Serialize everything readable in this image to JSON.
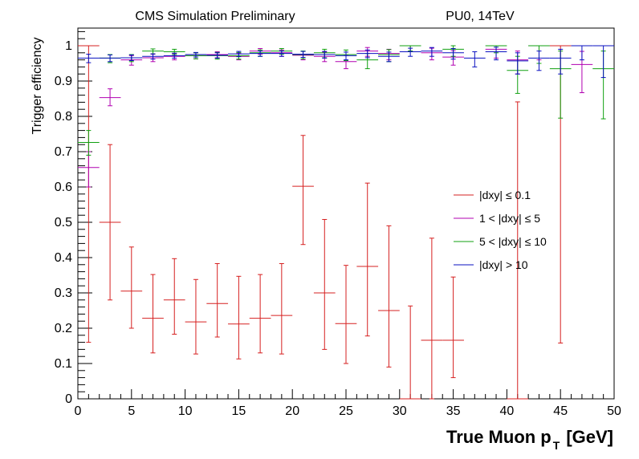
{
  "chart_data": {
    "type": "scatter",
    "title_left": "CMS Simulation Preliminary",
    "title_right": "PU0, 14TeV",
    "xlabel_main": "True Muon p",
    "xlabel_sub": "T",
    "xlabel_unit": "[GeV]",
    "ylabel": "Trigger efficiency",
    "xlim": [
      0,
      50
    ],
    "ylim": [
      0,
      1.05
    ],
    "xticks": [
      "0",
      "5",
      "10",
      "15",
      "20",
      "25",
      "30",
      "35",
      "40",
      "45",
      "50"
    ],
    "yticks": [
      "0",
      "0.1",
      "0.2",
      "0.3",
      "0.4",
      "0.5",
      "0.6",
      "0.7",
      "0.8",
      "0.9",
      "1"
    ],
    "legend_position": "center-right",
    "series": [
      {
        "name": "|dxy| ≤ 0.1",
        "color": "#d62020",
        "points": [
          {
            "x": 1,
            "y": 1.0,
            "lo": 0.16,
            "hi": 1.0
          },
          {
            "x": 3,
            "y": 0.5,
            "lo": 0.28,
            "hi": 0.72
          },
          {
            "x": 5,
            "y": 0.305,
            "lo": 0.2,
            "hi": 0.43
          },
          {
            "x": 7,
            "y": 0.228,
            "lo": 0.13,
            "hi": 0.352
          },
          {
            "x": 9,
            "y": 0.28,
            "lo": 0.183,
            "hi": 0.397
          },
          {
            "x": 11,
            "y": 0.218,
            "lo": 0.127,
            "hi": 0.338
          },
          {
            "x": 13,
            "y": 0.27,
            "lo": 0.175,
            "hi": 0.383
          },
          {
            "x": 15,
            "y": 0.212,
            "lo": 0.113,
            "hi": 0.347
          },
          {
            "x": 17,
            "y": 0.228,
            "lo": 0.13,
            "hi": 0.352
          },
          {
            "x": 19,
            "y": 0.236,
            "lo": 0.127,
            "hi": 0.383
          },
          {
            "x": 21,
            "y": 0.602,
            "lo": 0.437,
            "hi": 0.746
          },
          {
            "x": 23,
            "y": 0.3,
            "lo": 0.14,
            "hi": 0.508
          },
          {
            "x": 25,
            "y": 0.213,
            "lo": 0.1,
            "hi": 0.378
          },
          {
            "x": 27,
            "y": 0.375,
            "lo": 0.178,
            "hi": 0.611
          },
          {
            "x": 29,
            "y": 0.25,
            "lo": 0.09,
            "hi": 0.49
          },
          {
            "x": 31,
            "y": 0.0,
            "lo": 0.0,
            "hi": 0.263
          },
          {
            "x": 33,
            "y": 0.166,
            "lo": 0.0,
            "hi": 0.455
          },
          {
            "x": 35,
            "y": 0.166,
            "lo": 0.06,
            "hi": 0.345
          },
          {
            "x": 41,
            "y": 0.0,
            "lo": 0.0,
            "hi": 0.841
          },
          {
            "x": 45,
            "y": 1.0,
            "lo": 0.158,
            "hi": 1.0
          }
        ]
      },
      {
        "name": "1 < |dxy| ≤ 5",
        "color": "#b000b0",
        "points": [
          {
            "x": 1,
            "y": 0.655,
            "lo": 0.6,
            "hi": 0.7
          },
          {
            "x": 3,
            "y": 0.853,
            "lo": 0.83,
            "hi": 0.878
          },
          {
            "x": 5,
            "y": 0.96,
            "lo": 0.945,
            "hi": 0.972
          },
          {
            "x": 7,
            "y": 0.966,
            "lo": 0.955,
            "hi": 0.976
          },
          {
            "x": 9,
            "y": 0.97,
            "lo": 0.96,
            "hi": 0.978
          },
          {
            "x": 11,
            "y": 0.972,
            "lo": 0.963,
            "hi": 0.98
          },
          {
            "x": 13,
            "y": 0.975,
            "lo": 0.966,
            "hi": 0.983
          },
          {
            "x": 15,
            "y": 0.97,
            "lo": 0.96,
            "hi": 0.979
          },
          {
            "x": 17,
            "y": 0.985,
            "lo": 0.976,
            "hi": 0.992
          },
          {
            "x": 19,
            "y": 0.98,
            "lo": 0.97,
            "hi": 0.988
          },
          {
            "x": 21,
            "y": 0.973,
            "lo": 0.96,
            "hi": 0.984
          },
          {
            "x": 23,
            "y": 0.97,
            "lo": 0.955,
            "hi": 0.982
          },
          {
            "x": 25,
            "y": 0.955,
            "lo": 0.935,
            "hi": 0.972
          },
          {
            "x": 27,
            "y": 0.985,
            "lo": 0.97,
            "hi": 0.995
          },
          {
            "x": 29,
            "y": 0.978,
            "lo": 0.96,
            "hi": 0.99
          },
          {
            "x": 31,
            "y": 1.0,
            "lo": 0.985,
            "hi": 1.0
          },
          {
            "x": 33,
            "y": 0.98,
            "lo": 0.96,
            "hi": 0.993
          },
          {
            "x": 35,
            "y": 0.968,
            "lo": 0.945,
            "hi": 0.986
          },
          {
            "x": 39,
            "y": 0.99,
            "lo": 0.965,
            "hi": 1.0
          },
          {
            "x": 41,
            "y": 0.96,
            "lo": 0.92,
            "hi": 0.985
          },
          {
            "x": 43,
            "y": 1.0,
            "lo": 0.96,
            "hi": 1.0
          },
          {
            "x": 47,
            "y": 0.947,
            "lo": 0.867,
            "hi": 0.984
          }
        ]
      },
      {
        "name": "5 < |dxy| ≤ 10",
        "color": "#10a010",
        "points": [
          {
            "x": 1,
            "y": 0.726,
            "lo": 0.69,
            "hi": 0.76
          },
          {
            "x": 3,
            "y": 0.965,
            "lo": 0.952,
            "hi": 0.975
          },
          {
            "x": 5,
            "y": 0.966,
            "lo": 0.955,
            "hi": 0.975
          },
          {
            "x": 7,
            "y": 0.985,
            "lo": 0.977,
            "hi": 0.991
          },
          {
            "x": 9,
            "y": 0.983,
            "lo": 0.975,
            "hi": 0.99
          },
          {
            "x": 11,
            "y": 0.972,
            "lo": 0.963,
            "hi": 0.98
          },
          {
            "x": 13,
            "y": 0.972,
            "lo": 0.962,
            "hi": 0.981
          },
          {
            "x": 15,
            "y": 0.972,
            "lo": 0.962,
            "hi": 0.981
          },
          {
            "x": 17,
            "y": 0.98,
            "lo": 0.97,
            "hi": 0.988
          },
          {
            "x": 19,
            "y": 0.985,
            "lo": 0.976,
            "hi": 0.992
          },
          {
            "x": 21,
            "y": 0.975,
            "lo": 0.963,
            "hi": 0.985
          },
          {
            "x": 23,
            "y": 0.98,
            "lo": 0.966,
            "hi": 0.99
          },
          {
            "x": 25,
            "y": 0.975,
            "lo": 0.958,
            "hi": 0.988
          },
          {
            "x": 27,
            "y": 0.96,
            "lo": 0.935,
            "hi": 0.978
          },
          {
            "x": 29,
            "y": 0.975,
            "lo": 0.955,
            "hi": 0.989
          },
          {
            "x": 31,
            "y": 1.0,
            "lo": 0.985,
            "hi": 1.0
          },
          {
            "x": 35,
            "y": 0.99,
            "lo": 0.97,
            "hi": 1.0
          },
          {
            "x": 39,
            "y": 1.0,
            "lo": 0.98,
            "hi": 1.0
          },
          {
            "x": 41,
            "y": 0.93,
            "lo": 0.865,
            "hi": 0.97
          },
          {
            "x": 43,
            "y": 1.0,
            "lo": 0.95,
            "hi": 1.0
          },
          {
            "x": 45,
            "y": 0.935,
            "lo": 0.795,
            "hi": 0.985
          },
          {
            "x": 49,
            "y": 0.935,
            "lo": 0.793,
            "hi": 0.985
          }
        ]
      },
      {
        "name": "|dxy| > 10",
        "color": "#0a10c0",
        "points": [
          {
            "x": 1,
            "y": 0.965,
            "lo": 0.952,
            "hi": 0.976
          },
          {
            "x": 3,
            "y": 0.965,
            "lo": 0.955,
            "hi": 0.974
          },
          {
            "x": 5,
            "y": 0.966,
            "lo": 0.958,
            "hi": 0.974
          },
          {
            "x": 7,
            "y": 0.97,
            "lo": 0.962,
            "hi": 0.977
          },
          {
            "x": 9,
            "y": 0.972,
            "lo": 0.965,
            "hi": 0.979
          },
          {
            "x": 11,
            "y": 0.975,
            "lo": 0.968,
            "hi": 0.981
          },
          {
            "x": 13,
            "y": 0.973,
            "lo": 0.965,
            "hi": 0.98
          },
          {
            "x": 15,
            "y": 0.977,
            "lo": 0.969,
            "hi": 0.984
          },
          {
            "x": 17,
            "y": 0.978,
            "lo": 0.97,
            "hi": 0.985
          },
          {
            "x": 19,
            "y": 0.978,
            "lo": 0.97,
            "hi": 0.985
          },
          {
            "x": 21,
            "y": 0.976,
            "lo": 0.967,
            "hi": 0.984
          },
          {
            "x": 23,
            "y": 0.975,
            "lo": 0.965,
            "hi": 0.984
          },
          {
            "x": 25,
            "y": 0.972,
            "lo": 0.96,
            "hi": 0.982
          },
          {
            "x": 27,
            "y": 0.978,
            "lo": 0.966,
            "hi": 0.988
          },
          {
            "x": 29,
            "y": 0.97,
            "lo": 0.955,
            "hi": 0.982
          },
          {
            "x": 31,
            "y": 0.983,
            "lo": 0.97,
            "hi": 0.993
          },
          {
            "x": 33,
            "y": 0.985,
            "lo": 0.97,
            "hi": 0.995
          },
          {
            "x": 35,
            "y": 0.98,
            "lo": 0.962,
            "hi": 0.992
          },
          {
            "x": 37,
            "y": 0.965,
            "lo": 0.94,
            "hi": 0.983
          },
          {
            "x": 39,
            "y": 0.983,
            "lo": 0.96,
            "hi": 0.996
          },
          {
            "x": 41,
            "y": 0.957,
            "lo": 0.92,
            "hi": 0.98
          },
          {
            "x": 43,
            "y": 0.965,
            "lo": 0.93,
            "hi": 0.985
          },
          {
            "x": 45,
            "y": 0.965,
            "lo": 0.92,
            "hi": 0.99
          },
          {
            "x": 47,
            "y": 1.0,
            "lo": 0.96,
            "hi": 1.0
          },
          {
            "x": 49,
            "y": 1.0,
            "lo": 0.91,
            "hi": 1.0
          }
        ]
      }
    ]
  }
}
